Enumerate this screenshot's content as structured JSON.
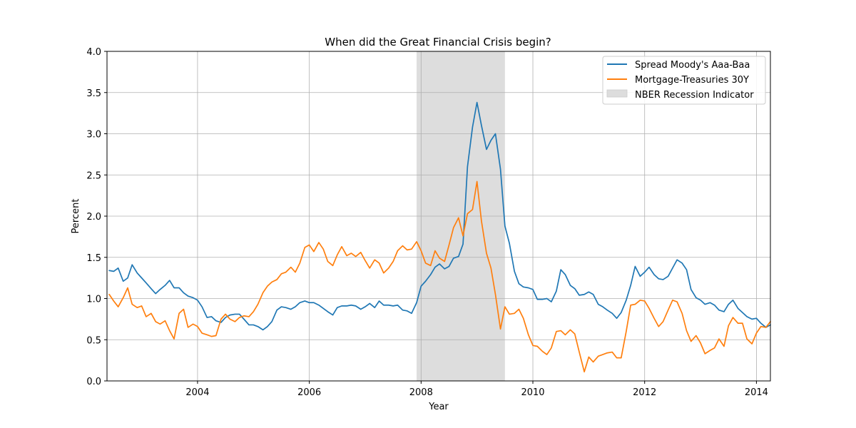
{
  "chart_data": {
    "type": "line",
    "title": "When did the Great Financial Crisis begin?",
    "xlabel": "Year",
    "ylabel": "Percent",
    "xlim": [
      2002.38,
      2014.25
    ],
    "ylim": [
      0.0,
      4.0
    ],
    "grid": true,
    "legend": "top-right",
    "x_ticks": [
      {
        "value": 2004,
        "label": "2004"
      },
      {
        "value": 2006,
        "label": "2006"
      },
      {
        "value": 2008,
        "label": "2008"
      },
      {
        "value": 2010,
        "label": "2010"
      },
      {
        "value": 2012,
        "label": "2012"
      },
      {
        "value": 2014,
        "label": "2014"
      }
    ],
    "y_ticks": [
      {
        "value": 0.0,
        "label": "0.0"
      },
      {
        "value": 0.5,
        "label": "0.5"
      },
      {
        "value": 1.0,
        "label": "1.0"
      },
      {
        "value": 1.5,
        "label": "1.5"
      },
      {
        "value": 2.0,
        "label": "2.0"
      },
      {
        "value": 2.5,
        "label": "2.5"
      },
      {
        "value": 3.0,
        "label": "3.0"
      },
      {
        "value": 3.5,
        "label": "3.5"
      },
      {
        "value": 4.0,
        "label": "4.0"
      }
    ],
    "recession": {
      "name": "NBER Recession Indicator",
      "start": 2007.92,
      "end": 2009.5,
      "color": "#dddddd"
    },
    "series": [
      {
        "name": "Spread Moody's Aaa-Baa",
        "color": "#1f77b4",
        "points": [
          [
            2002.42,
            1.34
          ],
          [
            2002.5,
            1.33
          ],
          [
            2002.58,
            1.37
          ],
          [
            2002.67,
            1.21
          ],
          [
            2002.75,
            1.25
          ],
          [
            2002.83,
            1.41
          ],
          [
            2002.92,
            1.31
          ],
          [
            2003.0,
            1.25
          ],
          [
            2003.08,
            1.19
          ],
          [
            2003.17,
            1.12
          ],
          [
            2003.25,
            1.06
          ],
          [
            2003.33,
            1.11
          ],
          [
            2003.42,
            1.16
          ],
          [
            2003.5,
            1.22
          ],
          [
            2003.58,
            1.13
          ],
          [
            2003.67,
            1.13
          ],
          [
            2003.75,
            1.07
          ],
          [
            2003.83,
            1.03
          ],
          [
            2003.92,
            1.01
          ],
          [
            2004.0,
            0.98
          ],
          [
            2004.08,
            0.9
          ],
          [
            2004.17,
            0.77
          ],
          [
            2004.25,
            0.78
          ],
          [
            2004.33,
            0.73
          ],
          [
            2004.42,
            0.71
          ],
          [
            2004.5,
            0.77
          ],
          [
            2004.58,
            0.8
          ],
          [
            2004.67,
            0.81
          ],
          [
            2004.75,
            0.81
          ],
          [
            2004.83,
            0.75
          ],
          [
            2004.92,
            0.68
          ],
          [
            2005.0,
            0.68
          ],
          [
            2005.08,
            0.66
          ],
          [
            2005.17,
            0.62
          ],
          [
            2005.25,
            0.66
          ],
          [
            2005.33,
            0.72
          ],
          [
            2005.42,
            0.86
          ],
          [
            2005.5,
            0.9
          ],
          [
            2005.58,
            0.89
          ],
          [
            2005.67,
            0.87
          ],
          [
            2005.75,
            0.9
          ],
          [
            2005.83,
            0.95
          ],
          [
            2005.92,
            0.97
          ],
          [
            2006.0,
            0.95
          ],
          [
            2006.08,
            0.95
          ],
          [
            2006.17,
            0.92
          ],
          [
            2006.25,
            0.88
          ],
          [
            2006.33,
            0.84
          ],
          [
            2006.42,
            0.8
          ],
          [
            2006.5,
            0.89
          ],
          [
            2006.58,
            0.91
          ],
          [
            2006.67,
            0.91
          ],
          [
            2006.75,
            0.92
          ],
          [
            2006.83,
            0.91
          ],
          [
            2006.92,
            0.87
          ],
          [
            2007.0,
            0.9
          ],
          [
            2007.08,
            0.94
          ],
          [
            2007.17,
            0.89
          ],
          [
            2007.25,
            0.97
          ],
          [
            2007.33,
            0.92
          ],
          [
            2007.42,
            0.92
          ],
          [
            2007.5,
            0.91
          ],
          [
            2007.58,
            0.92
          ],
          [
            2007.67,
            0.86
          ],
          [
            2007.75,
            0.85
          ],
          [
            2007.83,
            0.82
          ],
          [
            2007.92,
            0.95
          ],
          [
            2008.0,
            1.15
          ],
          [
            2008.08,
            1.21
          ],
          [
            2008.17,
            1.29
          ],
          [
            2008.25,
            1.38
          ],
          [
            2008.33,
            1.42
          ],
          [
            2008.42,
            1.36
          ],
          [
            2008.5,
            1.39
          ],
          [
            2008.58,
            1.49
          ],
          [
            2008.67,
            1.51
          ],
          [
            2008.75,
            1.66
          ],
          [
            2008.83,
            2.6
          ],
          [
            2008.92,
            3.08
          ],
          [
            2009.0,
            3.38
          ],
          [
            2009.08,
            3.1
          ],
          [
            2009.17,
            2.81
          ],
          [
            2009.25,
            2.92
          ],
          [
            2009.33,
            3.0
          ],
          [
            2009.42,
            2.57
          ],
          [
            2009.5,
            1.88
          ],
          [
            2009.58,
            1.67
          ],
          [
            2009.67,
            1.33
          ],
          [
            2009.75,
            1.18
          ],
          [
            2009.83,
            1.14
          ],
          [
            2009.92,
            1.13
          ],
          [
            2010.0,
            1.11
          ],
          [
            2010.08,
            0.99
          ],
          [
            2010.17,
            0.99
          ],
          [
            2010.25,
            1.0
          ],
          [
            2010.33,
            0.96
          ],
          [
            2010.42,
            1.09
          ],
          [
            2010.5,
            1.35
          ],
          [
            2010.58,
            1.29
          ],
          [
            2010.67,
            1.16
          ],
          [
            2010.75,
            1.12
          ],
          [
            2010.83,
            1.04
          ],
          [
            2010.92,
            1.05
          ],
          [
            2011.0,
            1.08
          ],
          [
            2011.08,
            1.05
          ],
          [
            2011.17,
            0.93
          ],
          [
            2011.25,
            0.9
          ],
          [
            2011.33,
            0.86
          ],
          [
            2011.42,
            0.82
          ],
          [
            2011.5,
            0.76
          ],
          [
            2011.58,
            0.83
          ],
          [
            2011.67,
            0.98
          ],
          [
            2011.75,
            1.16
          ],
          [
            2011.83,
            1.39
          ],
          [
            2011.92,
            1.27
          ],
          [
            2012.0,
            1.32
          ],
          [
            2012.08,
            1.38
          ],
          [
            2012.17,
            1.29
          ],
          [
            2012.25,
            1.24
          ],
          [
            2012.33,
            1.23
          ],
          [
            2012.42,
            1.27
          ],
          [
            2012.5,
            1.37
          ],
          [
            2012.58,
            1.47
          ],
          [
            2012.67,
            1.43
          ],
          [
            2012.75,
            1.35
          ],
          [
            2012.83,
            1.11
          ],
          [
            2012.92,
            1.01
          ],
          [
            2013.0,
            0.98
          ],
          [
            2013.08,
            0.93
          ],
          [
            2013.17,
            0.95
          ],
          [
            2013.25,
            0.92
          ],
          [
            2013.33,
            0.86
          ],
          [
            2013.42,
            0.84
          ],
          [
            2013.5,
            0.93
          ],
          [
            2013.58,
            0.98
          ],
          [
            2013.67,
            0.88
          ],
          [
            2013.75,
            0.83
          ],
          [
            2013.83,
            0.78
          ],
          [
            2013.92,
            0.75
          ],
          [
            2014.0,
            0.76
          ],
          [
            2014.08,
            0.7
          ],
          [
            2014.17,
            0.65
          ],
          [
            2014.25,
            0.68
          ]
        ]
      },
      {
        "name": "Mortgage-Treasuries 30Y",
        "color": "#ff7f0e",
        "points": [
          [
            2002.42,
            1.05
          ],
          [
            2002.5,
            0.97
          ],
          [
            2002.58,
            0.9
          ],
          [
            2002.67,
            1.01
          ],
          [
            2002.75,
            1.13
          ],
          [
            2002.83,
            0.93
          ],
          [
            2002.92,
            0.89
          ],
          [
            2003.0,
            0.91
          ],
          [
            2003.08,
            0.78
          ],
          [
            2003.17,
            0.82
          ],
          [
            2003.25,
            0.72
          ],
          [
            2003.33,
            0.69
          ],
          [
            2003.42,
            0.73
          ],
          [
            2003.5,
            0.61
          ],
          [
            2003.58,
            0.51
          ],
          [
            2003.67,
            0.82
          ],
          [
            2003.75,
            0.87
          ],
          [
            2003.83,
            0.65
          ],
          [
            2003.92,
            0.69
          ],
          [
            2004.0,
            0.66
          ],
          [
            2004.08,
            0.58
          ],
          [
            2004.17,
            0.56
          ],
          [
            2004.25,
            0.54
          ],
          [
            2004.33,
            0.55
          ],
          [
            2004.42,
            0.75
          ],
          [
            2004.5,
            0.81
          ],
          [
            2004.58,
            0.75
          ],
          [
            2004.67,
            0.72
          ],
          [
            2004.75,
            0.77
          ],
          [
            2004.83,
            0.79
          ],
          [
            2004.92,
            0.78
          ],
          [
            2005.0,
            0.84
          ],
          [
            2005.08,
            0.93
          ],
          [
            2005.17,
            1.07
          ],
          [
            2005.25,
            1.15
          ],
          [
            2005.33,
            1.2
          ],
          [
            2005.42,
            1.23
          ],
          [
            2005.5,
            1.3
          ],
          [
            2005.58,
            1.32
          ],
          [
            2005.67,
            1.38
          ],
          [
            2005.75,
            1.32
          ],
          [
            2005.83,
            1.43
          ],
          [
            2005.92,
            1.62
          ],
          [
            2006.0,
            1.65
          ],
          [
            2006.08,
            1.57
          ],
          [
            2006.17,
            1.68
          ],
          [
            2006.25,
            1.6
          ],
          [
            2006.33,
            1.45
          ],
          [
            2006.42,
            1.4
          ],
          [
            2006.5,
            1.53
          ],
          [
            2006.58,
            1.63
          ],
          [
            2006.67,
            1.52
          ],
          [
            2006.75,
            1.55
          ],
          [
            2006.83,
            1.51
          ],
          [
            2006.92,
            1.56
          ],
          [
            2007.0,
            1.46
          ],
          [
            2007.08,
            1.37
          ],
          [
            2007.17,
            1.47
          ],
          [
            2007.25,
            1.43
          ],
          [
            2007.33,
            1.31
          ],
          [
            2007.42,
            1.37
          ],
          [
            2007.5,
            1.45
          ],
          [
            2007.58,
            1.58
          ],
          [
            2007.67,
            1.64
          ],
          [
            2007.75,
            1.59
          ],
          [
            2007.83,
            1.6
          ],
          [
            2007.92,
            1.69
          ],
          [
            2008.0,
            1.58
          ],
          [
            2008.08,
            1.43
          ],
          [
            2008.17,
            1.4
          ],
          [
            2008.25,
            1.58
          ],
          [
            2008.33,
            1.49
          ],
          [
            2008.42,
            1.45
          ],
          [
            2008.5,
            1.65
          ],
          [
            2008.58,
            1.86
          ],
          [
            2008.67,
            1.98
          ],
          [
            2008.75,
            1.76
          ],
          [
            2008.83,
            2.03
          ],
          [
            2008.92,
            2.08
          ],
          [
            2009.0,
            2.42
          ],
          [
            2009.08,
            1.94
          ],
          [
            2009.17,
            1.55
          ],
          [
            2009.25,
            1.37
          ],
          [
            2009.33,
            1.05
          ],
          [
            2009.42,
            0.63
          ],
          [
            2009.5,
            0.9
          ],
          [
            2009.58,
            0.81
          ],
          [
            2009.67,
            0.82
          ],
          [
            2009.75,
            0.87
          ],
          [
            2009.83,
            0.76
          ],
          [
            2009.92,
            0.56
          ],
          [
            2010.0,
            0.43
          ],
          [
            2010.08,
            0.42
          ],
          [
            2010.17,
            0.36
          ],
          [
            2010.25,
            0.32
          ],
          [
            2010.33,
            0.4
          ],
          [
            2010.42,
            0.6
          ],
          [
            2010.5,
            0.61
          ],
          [
            2010.58,
            0.56
          ],
          [
            2010.67,
            0.62
          ],
          [
            2010.75,
            0.57
          ],
          [
            2010.83,
            0.35
          ],
          [
            2010.92,
            0.11
          ],
          [
            2011.0,
            0.29
          ],
          [
            2011.08,
            0.23
          ],
          [
            2011.17,
            0.3
          ],
          [
            2011.25,
            0.32
          ],
          [
            2011.33,
            0.34
          ],
          [
            2011.42,
            0.35
          ],
          [
            2011.5,
            0.28
          ],
          [
            2011.58,
            0.28
          ],
          [
            2011.67,
            0.6
          ],
          [
            2011.75,
            0.92
          ],
          [
            2011.83,
            0.93
          ],
          [
            2011.92,
            0.98
          ],
          [
            2012.0,
            0.97
          ],
          [
            2012.08,
            0.88
          ],
          [
            2012.17,
            0.76
          ],
          [
            2012.25,
            0.66
          ],
          [
            2012.33,
            0.72
          ],
          [
            2012.42,
            0.86
          ],
          [
            2012.5,
            0.98
          ],
          [
            2012.58,
            0.96
          ],
          [
            2012.67,
            0.82
          ],
          [
            2012.75,
            0.61
          ],
          [
            2012.83,
            0.48
          ],
          [
            2012.92,
            0.55
          ],
          [
            2013.0,
            0.46
          ],
          [
            2013.08,
            0.33
          ],
          [
            2013.17,
            0.37
          ],
          [
            2013.25,
            0.4
          ],
          [
            2013.33,
            0.51
          ],
          [
            2013.42,
            0.42
          ],
          [
            2013.5,
            0.67
          ],
          [
            2013.58,
            0.77
          ],
          [
            2013.67,
            0.7
          ],
          [
            2013.75,
            0.7
          ],
          [
            2013.83,
            0.51
          ],
          [
            2013.92,
            0.45
          ],
          [
            2014.0,
            0.58
          ],
          [
            2014.08,
            0.66
          ],
          [
            2014.17,
            0.65
          ],
          [
            2014.25,
            0.72
          ]
        ]
      }
    ]
  }
}
